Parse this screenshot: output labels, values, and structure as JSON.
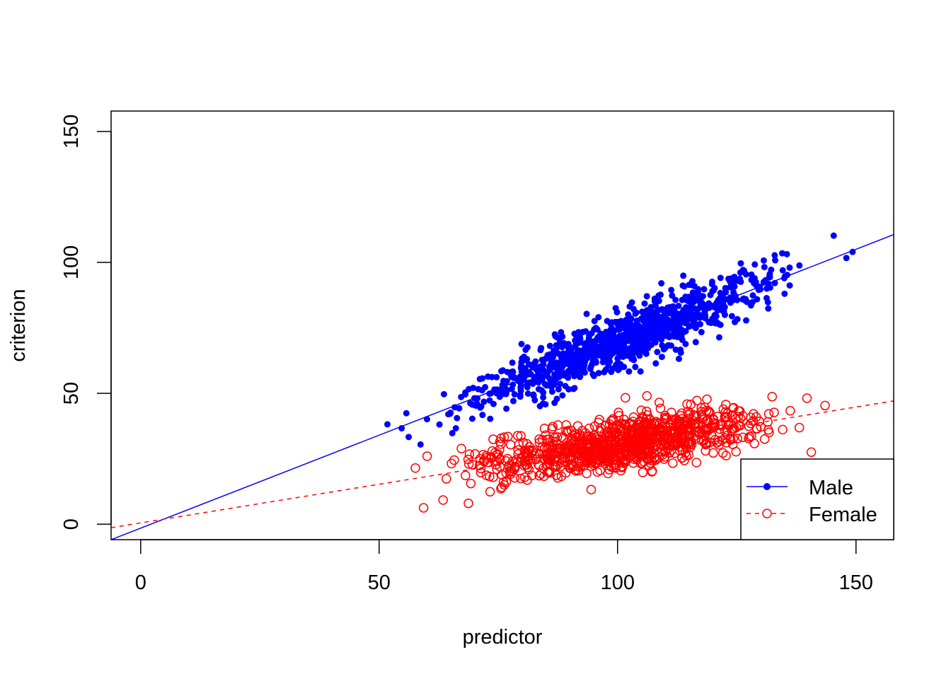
{
  "chart_data": {
    "type": "scatter",
    "title": "",
    "xlabel": "predictor",
    "ylabel": "criterion",
    "xlim": [
      -6.2,
      157.9
    ],
    "ylim": [
      -5.9,
      157.8
    ],
    "xticks": [
      0,
      50,
      100,
      150
    ],
    "yticks": [
      0,
      50,
      100,
      150
    ],
    "xtick_labels": [
      "0",
      "50",
      "100",
      "150"
    ],
    "ytick_labels": [
      "0",
      "50",
      "100",
      "150"
    ],
    "grid": false,
    "legend": {
      "placement": "bottom-right",
      "entries": [
        {
          "label": "Male",
          "color": "#0000ff",
          "marker": "filled-circle",
          "line": "solid"
        },
        {
          "label": "Female",
          "color": "#ff0000",
          "marker": "open-circle",
          "line": "dashed"
        }
      ]
    },
    "series": [
      {
        "name": "Male",
        "color": "#0000ff",
        "n": 1000,
        "x_mean": 100,
        "x_sd": 15,
        "fit": {
          "intercept": -1.5,
          "slope": 0.71
        },
        "residual_sd": 5,
        "seed": 7
      },
      {
        "name": "Female",
        "color": "#ff0000",
        "n": 1000,
        "x_mean": 101,
        "x_sd": 14,
        "fit": {
          "intercept": 0.5,
          "slope": 0.295
        },
        "residual_sd": 5,
        "seed": 13
      }
    ]
  }
}
